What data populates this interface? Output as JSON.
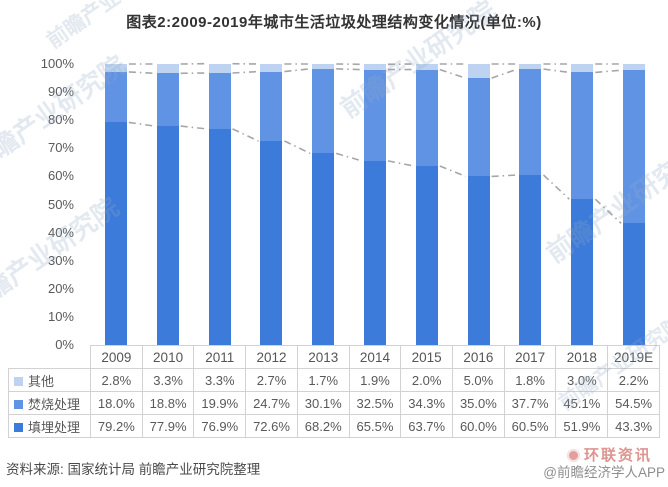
{
  "page": {
    "title": "图表2:2009-2019年城市生活垃圾处理结构变化情况(单位:%)"
  },
  "chart_data": {
    "type": "bar",
    "stacked": true,
    "title": "图表2:2009-2019年城市生活垃圾处理结构变化情况",
    "unit": "%",
    "categories": [
      "2009",
      "2010",
      "2011",
      "2012",
      "2013",
      "2014",
      "2015",
      "2016",
      "2017",
      "2018",
      "2019E"
    ],
    "series": [
      {
        "key": "qita",
        "name": "其他",
        "color": "#BDD3F1",
        "values": [
          2.8,
          3.3,
          3.3,
          2.7,
          1.7,
          1.9,
          2.0,
          5.0,
          1.8,
          3.0,
          2.2
        ]
      },
      {
        "key": "fenshao",
        "name": "焚烧处理",
        "color": "#6193E4",
        "values": [
          18.0,
          18.8,
          19.9,
          24.7,
          30.1,
          32.5,
          34.3,
          35.0,
          37.7,
          45.1,
          54.5
        ]
      },
      {
        "key": "tianmai",
        "name": "填埋处理",
        "color": "#3C7BD9",
        "values": [
          79.2,
          77.9,
          76.9,
          72.6,
          68.2,
          65.5,
          63.7,
          60.0,
          60.5,
          51.9,
          43.3
        ]
      }
    ],
    "stack_order": [
      2,
      1,
      0
    ],
    "ylim": [
      0,
      100
    ],
    "ytick_labels": [
      "0%",
      "10%",
      "20%",
      "30%",
      "40%",
      "50%",
      "60%",
      "70%",
      "80%",
      "90%",
      "100%"
    ],
    "grid": false,
    "series_lines": true,
    "series_line_color": "#a6a6a6",
    "legend_position": "table-left",
    "value_suffix": "%"
  },
  "footer": {
    "source_note": "资料来源: 国家统计局 前瞻产业研究院整理",
    "app_handle": "@前瞻经济学人APP",
    "overlay_brand": "环联资讯"
  },
  "watermark_text": "前瞻产业研究院",
  "watermark_color": "#93a9c4"
}
